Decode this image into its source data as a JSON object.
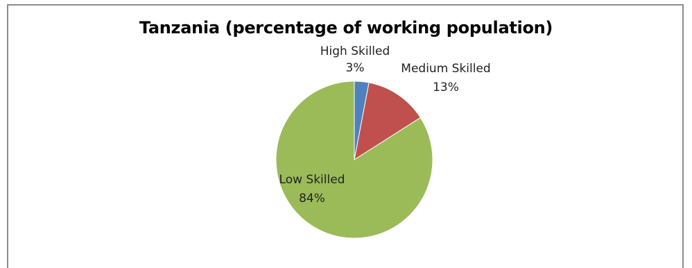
{
  "chart_data": {
    "type": "pie",
    "title": "Tanzania (percentage of working population)",
    "series": [
      {
        "categories": [
          "High Skilled",
          "Medium Skilled",
          "Low Skilled"
        ],
        "values": [
          3,
          13,
          84
        ],
        "value_labels": [
          "3%",
          "13%",
          "84%"
        ],
        "colors": [
          "#4f81bd",
          "#c0504d",
          "#9bbb59"
        ]
      }
    ],
    "start_angle": "12 o'clock, clockwise",
    "legend": "none (data labels on chart)"
  }
}
